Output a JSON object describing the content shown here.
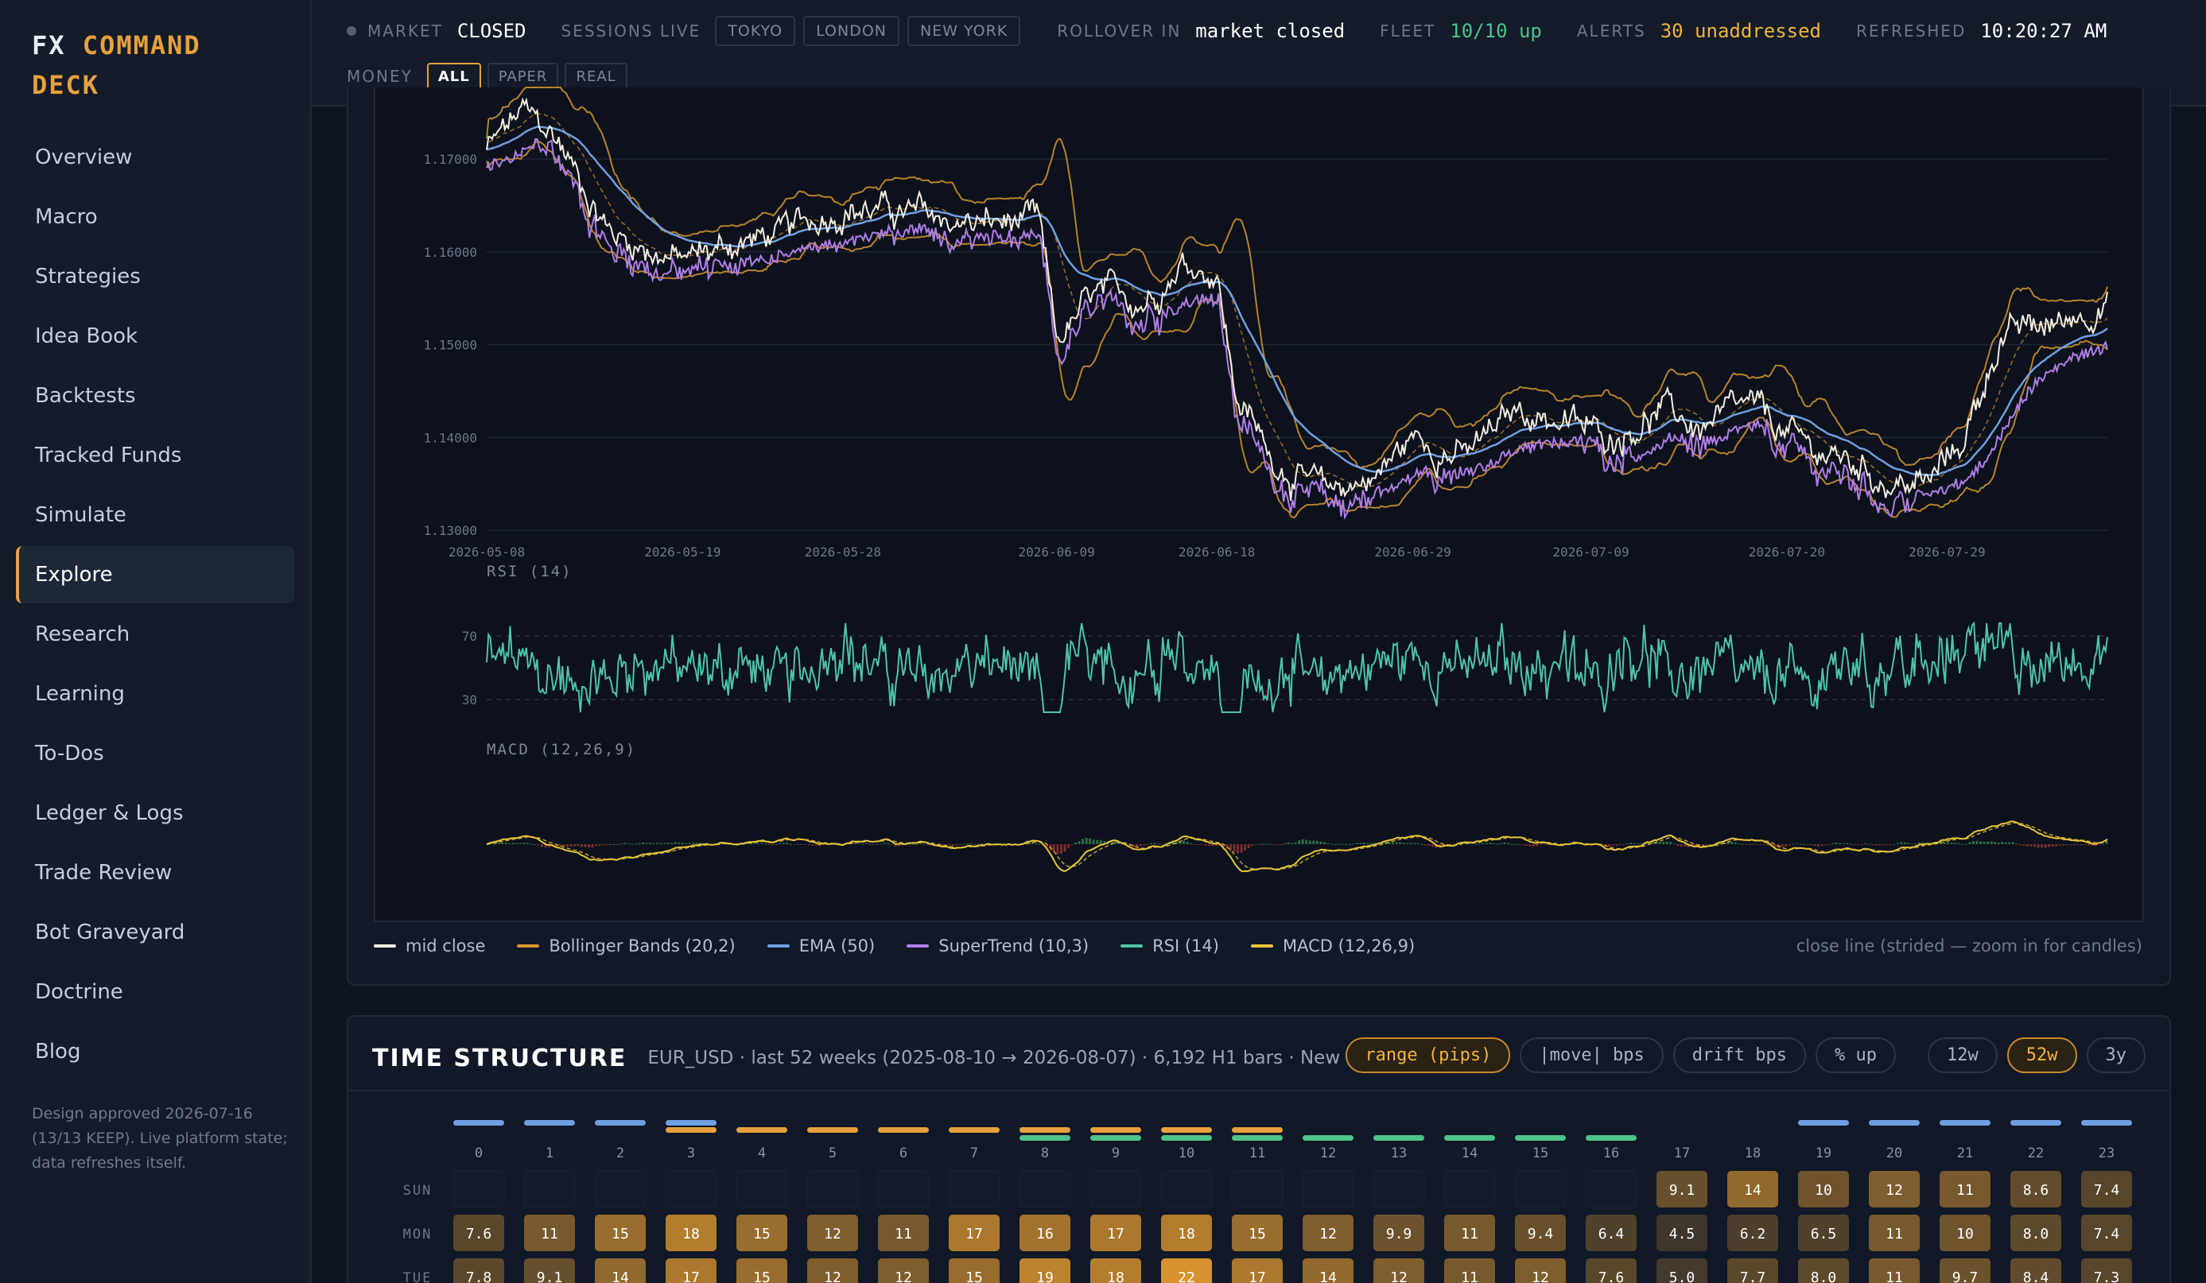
{
  "brand": {
    "prefix": "FX",
    "accent": "COMMAND",
    "suffix": "DECK"
  },
  "nav": {
    "items": [
      "Overview",
      "Macro",
      "Strategies",
      "Idea Book",
      "Backtests",
      "Tracked Funds",
      "Simulate",
      "Explore",
      "Research",
      "Learning",
      "To-Dos",
      "Ledger & Logs",
      "Trade Review",
      "Bot Graveyard",
      "Doctrine",
      "Blog"
    ],
    "active": "Explore"
  },
  "sidebar_note": "Design approved 2026-07-16 (13/13 KEEP). Live platform state; data refreshes itself.",
  "topbar": {
    "market_label": "MARKET",
    "market_value": "CLOSED",
    "sessions_label": "SESSIONS LIVE",
    "sessions": [
      "TOKYO",
      "LONDON",
      "NEW YORK"
    ],
    "rollover_label": "ROLLOVER IN",
    "rollover_value": "market closed",
    "fleet_label": "FLEET",
    "fleet_value": "10/10 up",
    "alerts_label": "ALERTS",
    "alerts_value": "30 unaddressed",
    "refreshed_label": "REFRESHED",
    "refreshed_value": "10:20:27 AM",
    "money_label": "MONEY",
    "money_options": [
      "ALL",
      "PAPER",
      "REAL"
    ],
    "money_active": "ALL"
  },
  "colors": {
    "accent": "#e8a13c",
    "mid_close": "#f2ede0",
    "bollinger": "#d6962f",
    "ema": "#6f9fe0",
    "supertrend": "#b07ee8",
    "rsi": "#4fc3a7",
    "macd": "#e8c53a",
    "macd_pos": "#2f6b45",
    "macd_neg": "#7a2f2f"
  },
  "legend": {
    "items": [
      {
        "label": "mid close",
        "color": "#f2ede0"
      },
      {
        "label": "Bollinger Bands (20,2)",
        "color": "#d6962f"
      },
      {
        "label": "EMA (50)",
        "color": "#6f9fe0"
      },
      {
        "label": "SuperTrend (10,3)",
        "color": "#b07ee8"
      },
      {
        "label": "RSI (14)",
        "color": "#4fc3a7"
      },
      {
        "label": "MACD (12,26,9)",
        "color": "#e8c53a"
      }
    ],
    "note": "close line (strided — zoom in for candles)"
  },
  "chart_data": [
    {
      "type": "line",
      "yticks": [
        "1.17000",
        "1.16000",
        "1.15000",
        "1.14000",
        "1.13000"
      ],
      "ylim": [
        1.13,
        1.176
      ],
      "x_labels": [
        "2026-05-08",
        "2026-05-19",
        "2026-05-28",
        "2026-06-09",
        "2026-06-18",
        "2026-06-29",
        "2026-07-09",
        "2026-07-20",
        "2026-07-29"
      ],
      "anchors": {
        "x": [
          "2026-05-08",
          "2026-05-10",
          "2026-05-12",
          "2026-05-15",
          "2026-05-19",
          "2026-05-22",
          "2026-05-25",
          "2026-05-28",
          "2026-06-01",
          "2026-06-04",
          "2026-06-08",
          "2026-06-09",
          "2026-06-11",
          "2026-06-14",
          "2026-06-16",
          "2026-06-18",
          "2026-06-19",
          "2026-06-21",
          "2026-06-24",
          "2026-06-27",
          "2026-06-29",
          "2026-07-02",
          "2026-07-05",
          "2026-07-07",
          "2026-07-10",
          "2026-07-13",
          "2026-07-15",
          "2026-07-18",
          "2026-07-21",
          "2026-07-24",
          "2026-07-26",
          "2026-07-28",
          "2026-07-30",
          "2026-08-01",
          "2026-08-04",
          "2026-08-07"
        ],
        "y": [
          1.171,
          1.175,
          1.172,
          1.162,
          1.159,
          1.161,
          1.162,
          1.165,
          1.164,
          1.163,
          1.163,
          1.15,
          1.155,
          1.155,
          1.159,
          1.158,
          1.145,
          1.138,
          1.134,
          1.136,
          1.14,
          1.138,
          1.143,
          1.142,
          1.14,
          1.143,
          1.141,
          1.143,
          1.139,
          1.137,
          1.135,
          1.135,
          1.14,
          1.151,
          1.152,
          1.155
        ]
      },
      "series": [
        {
          "name": "mid close"
        },
        {
          "name": "Bollinger Bands (20,2)"
        },
        {
          "name": "EMA (50)"
        },
        {
          "name": "SuperTrend (10,3)"
        }
      ]
    },
    {
      "type": "line",
      "title": "RSI (14)",
      "yticks": [
        "70",
        "30"
      ],
      "ylim": [
        20,
        80
      ]
    },
    {
      "type": "line",
      "title": "MACD (12,26,9)"
    }
  ],
  "time_structure": {
    "title": "TIME STRUCTURE",
    "subtitle": "EUR_USD · last 52 weeks (2025-08-10 → 2026-08-07) · 6,192 H1 bars · New York clock",
    "metrics": [
      "range (pips)",
      "|move| bps",
      "drift bps",
      "% up"
    ],
    "metric_active": "range (pips)",
    "windows": [
      "12w",
      "52w",
      "3y"
    ],
    "window_active": "52w",
    "hours": [
      "0",
      "1",
      "2",
      "3",
      "4",
      "5",
      "6",
      "7",
      "8",
      "9",
      "10",
      "11",
      "12",
      "13",
      "14",
      "15",
      "16",
      "17",
      "18",
      "19",
      "20",
      "21",
      "22",
      "23"
    ],
    "session_bars": {
      "tokyo": [
        0,
        1,
        2,
        3,
        19,
        20,
        21,
        22,
        23
      ],
      "london": [
        3,
        4,
        5,
        6,
        7,
        8,
        9,
        10,
        11
      ],
      "newyork": [
        8,
        9,
        10,
        11,
        12,
        13,
        14,
        15,
        16
      ]
    },
    "rows": [
      {
        "day": "SUN",
        "values": [
          null,
          null,
          null,
          null,
          null,
          null,
          null,
          null,
          null,
          null,
          null,
          null,
          null,
          null,
          null,
          null,
          null,
          "9.1",
          "14",
          "10",
          "12",
          "11",
          "8.6",
          "7.4"
        ]
      },
      {
        "day": "MON",
        "values": [
          "7.6",
          "11",
          "15",
          "18",
          "15",
          "12",
          "11",
          "17",
          "16",
          "17",
          "18",
          "15",
          "12",
          "9.9",
          "11",
          "9.4",
          "6.4",
          "4.5",
          "6.2",
          "6.5",
          "11",
          "10",
          "8.0",
          "7.4"
        ]
      },
      {
        "day": "TUE",
        "values": [
          "7.8",
          "9.1",
          "14",
          "17",
          "15",
          "12",
          "12",
          "15",
          "19",
          "18",
          "22",
          "17",
          "14",
          "12",
          "11",
          "12",
          "7.6",
          "5.0",
          "7.7",
          "8.0",
          "11",
          "9.7",
          "8.4",
          "7.3"
        ]
      }
    ]
  }
}
